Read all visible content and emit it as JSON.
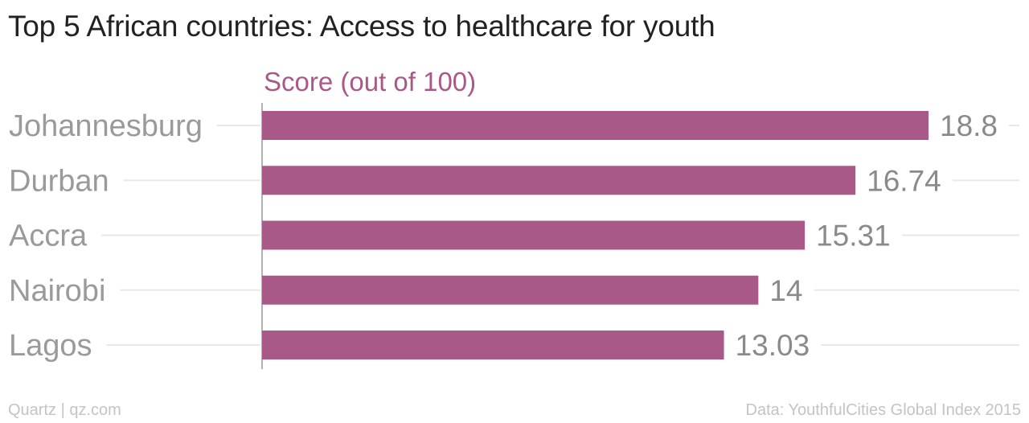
{
  "title": "Top 5 African countries: Access to healthcare for youth",
  "footer": {
    "source_left": "Quartz | qz.com",
    "source_right": "Data: YouthfulCities Global Index 2015"
  },
  "colors": {
    "bar": "#a85987",
    "axis_label": "#a85987",
    "category_label": "#9a9a9a",
    "value_label": "#8a8a8a",
    "gridline": "#e8e8e8",
    "axis_line": "#999999"
  },
  "chart_data": {
    "type": "bar",
    "orientation": "horizontal",
    "categories": [
      "Johannesburg",
      "Durban",
      "Accra",
      "Nairobi",
      "Lagos"
    ],
    "values": [
      18.8,
      16.74,
      15.31,
      14,
      13.03
    ],
    "value_labels": [
      "18.8",
      "16.74",
      "15.31",
      "14",
      "13.03"
    ],
    "xlabel": "Score (out of 100)",
    "ylabel": "",
    "xlim": [
      0,
      19.8
    ],
    "grid": true,
    "legend": "none"
  }
}
